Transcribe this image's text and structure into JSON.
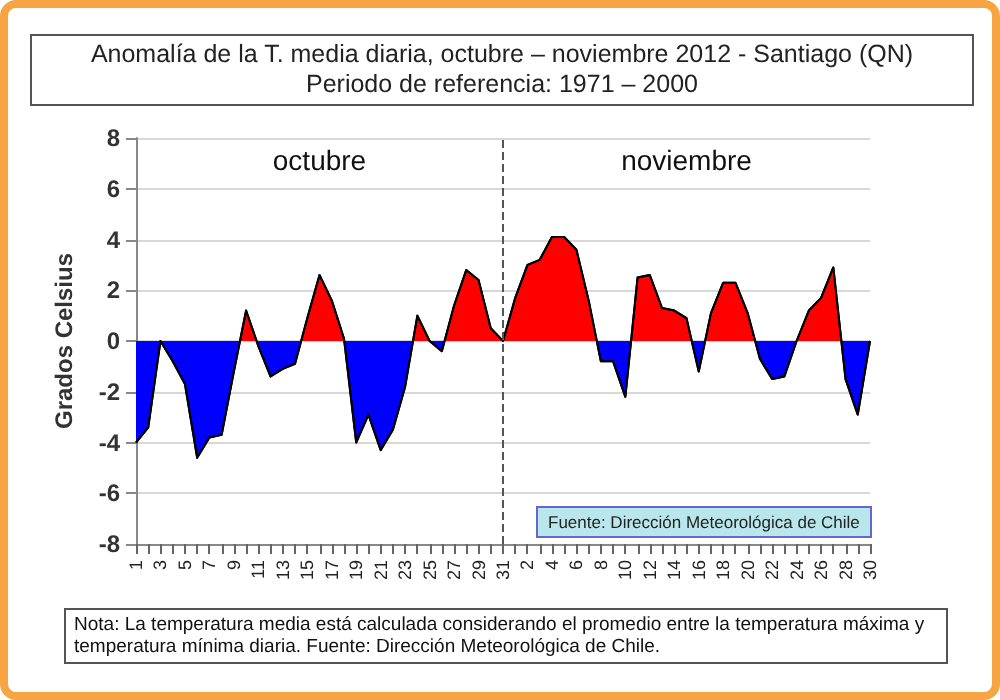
{
  "chart_data": {
    "type": "area",
    "title": "Anomalía de la T. media diaria, octubre – noviembre  2012 - Santiago (QN)",
    "subtitle": "Periodo de referencia: 1971 – 2000",
    "ylabel": "Grados Celsius",
    "categories": [
      "1",
      null,
      "3",
      null,
      "5",
      null,
      "7",
      null,
      "9",
      null,
      "11",
      null,
      "13",
      null,
      "15",
      null,
      "17",
      null,
      "19",
      null,
      "21",
      null,
      "23",
      null,
      "25",
      null,
      "27",
      null,
      "29",
      null,
      "31",
      null,
      "2",
      null,
      "4",
      null,
      "6",
      null,
      "8",
      null,
      "10",
      null,
      "12",
      null,
      "14",
      null,
      "16",
      null,
      "18",
      null,
      "20",
      null,
      "22",
      null,
      "24",
      null,
      "26",
      null,
      "28",
      null,
      "30"
    ],
    "series": [
      {
        "color": "#000000",
        "values": [
          -4.0,
          -3.4,
          0.0,
          -0.8,
          -1.7,
          -4.6,
          -3.8,
          -3.7,
          -1.2,
          1.2,
          -0.2,
          -1.4,
          -1.1,
          -0.9,
          0.9,
          2.6,
          1.6,
          0.1,
          -4.0,
          -2.9,
          -4.3,
          -3.5,
          -1.8,
          1.0,
          0.0,
          -0.4,
          1.4,
          2.8,
          2.4,
          0.5,
          0.0,
          1.7,
          3.0,
          3.2,
          4.1,
          4.1,
          3.6,
          1.6,
          -0.8,
          -0.8,
          -2.2,
          2.5,
          2.6,
          1.3,
          1.2,
          0.9,
          -1.2,
          1.1,
          2.3,
          2.3,
          1.1,
          -0.7,
          -1.5,
          -1.4,
          0.0,
          1.2,
          1.7,
          2.9,
          -1.5,
          -2.9,
          0.0
        ],
        "colors": [
          "#0000ff",
          "#0000ff",
          "#ff0000",
          "#0000ff",
          "#0000ff",
          "#0000ff",
          "#0000ff",
          "#0000ff",
          "#0000ff",
          "#ff0000",
          "#0000ff",
          "#0000ff",
          "#0000ff",
          "#0000ff",
          "#ff0000",
          "#ff0000",
          "#ff0000",
          "#ff0000",
          "#0000ff",
          "#0000ff",
          "#0000ff",
          "#0000ff",
          "#0000ff",
          "#ff0000",
          "#ff0000",
          "#0000ff",
          "#ff0000",
          "#ff0000",
          "#ff0000",
          "#ff0000",
          "#ff0000",
          "#ff0000",
          "#ff0000",
          "#ff0000",
          "#ff0000",
          "#ff0000",
          "#ff0000",
          "#ff0000",
          "#0000ff",
          "#0000ff",
          "#0000ff",
          "#ff0000",
          "#ff0000",
          "#ff0000",
          "#ff0000",
          "#ff0000",
          "#0000ff",
          "#ff0000",
          "#ff0000",
          "#ff0000",
          "#ff0000",
          "#0000ff",
          "#0000ff",
          "#0000ff",
          "#ff0000",
          "#ff0000",
          "#ff0000",
          "#ff0000",
          "#0000ff",
          "#0000ff",
          "#ff0000"
        ]
      }
    ],
    "ylim": [
      -8,
      8
    ],
    "yticks": [
      -8,
      -6,
      -4,
      -2,
      0,
      2,
      4,
      6,
      8
    ],
    "grid": "y",
    "marker": "none",
    "ref_lines": [
      {
        "axis": "x",
        "value": "31",
        "line_style": "dashed",
        "color": "#555555"
      }
    ],
    "annotations": [
      "octubre",
      "noviembre",
      "Fuente: Dirección Meteorológica de Chile",
      "Nota: La temperatura media está calculada considerando el promedio entre la temperatura máxima y temperatura mínima diaria. Fuente: Dirección Meteorológica de Chile."
    ]
  }
}
